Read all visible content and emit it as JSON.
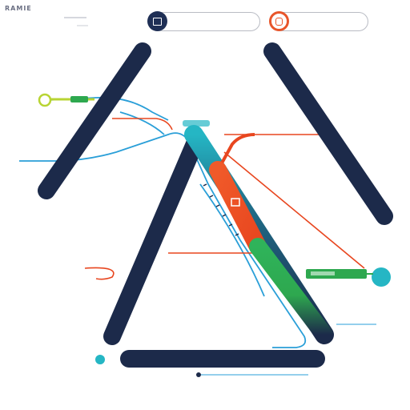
{
  "corner_mark": "RAMIE",
  "header": {
    "left_pill": {
      "icon": "monitor-icon"
    },
    "right_pill": {
      "icon": "lock-icon"
    }
  },
  "bottom_bar": {
    "label": ""
  },
  "colors": {
    "navy": "#1c2a4a",
    "red": "#e8461f",
    "green": "#2ea84f",
    "teal": "#25b6c4",
    "blue": "#2a9fd8",
    "lime": "#b8d433",
    "gray": "#b9bcc4"
  }
}
